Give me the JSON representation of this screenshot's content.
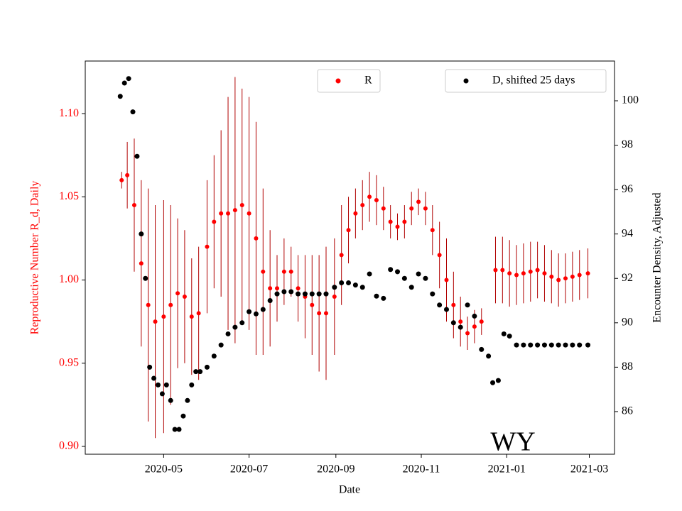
{
  "chart_data": {
    "type": "scatter",
    "xlabel": "Date",
    "ylabel": "Reproductive Number R_d, Daily",
    "y2label": "Encounter Density, Adjusted",
    "annotation": "WY",
    "xlim": [
      "2020-03-06",
      "2021-03-19"
    ],
    "xticks": [
      "2020-05",
      "2020-07",
      "2020-09",
      "2020-11",
      "2021-01",
      "2021-03"
    ],
    "ylim": [
      0.8953,
      1.1316
    ],
    "yticks": [
      {
        "value": 0.9,
        "label": "0.90"
      },
      {
        "value": 0.95,
        "label": "0.95"
      },
      {
        "value": 1.0,
        "label": "1.00"
      },
      {
        "value": 1.05,
        "label": "1.05"
      },
      {
        "value": 1.1,
        "label": "1.10"
      }
    ],
    "y2lim": [
      84.08,
      101.79
    ],
    "y2ticks": [
      86,
      88,
      90,
      92,
      94,
      96,
      98,
      100
    ],
    "series": [
      {
        "name": "R",
        "color": "#ff0000",
        "error_color": "#b00000",
        "axis": "y",
        "legend": "upper center",
        "x": [
          "2020-04-01",
          "2020-04-05",
          "2020-04-10",
          "2020-04-15",
          "2020-04-20",
          "2020-04-25",
          "2020-05-01",
          "2020-05-06",
          "2020-05-11",
          "2020-05-16",
          "2020-05-21",
          "2020-05-26",
          "2020-06-01",
          "2020-06-06",
          "2020-06-11",
          "2020-06-16",
          "2020-06-21",
          "2020-06-26",
          "2020-07-01",
          "2020-07-06",
          "2020-07-11",
          "2020-07-16",
          "2020-07-21",
          "2020-07-26",
          "2020-07-31",
          "2020-08-05",
          "2020-08-10",
          "2020-08-15",
          "2020-08-20",
          "2020-08-25",
          "2020-08-31",
          "2020-09-05",
          "2020-09-10",
          "2020-09-15",
          "2020-09-20",
          "2020-09-25",
          "2020-09-30",
          "2020-10-05",
          "2020-10-10",
          "2020-10-15",
          "2020-10-20",
          "2020-10-25",
          "2020-10-30",
          "2020-11-04",
          "2020-11-09",
          "2020-11-14",
          "2020-11-19",
          "2020-11-24",
          "2020-11-29",
          "2020-12-04",
          "2020-12-09",
          "2020-12-14",
          "2020-12-24",
          "2020-12-29",
          "2021-01-03",
          "2021-01-08",
          "2021-01-13",
          "2021-01-18",
          "2021-01-23",
          "2021-01-28",
          "2021-02-02",
          "2021-02-07",
          "2021-02-12",
          "2021-02-17",
          "2021-02-22",
          "2021-02-28"
        ],
        "values": [
          1.06,
          1.063,
          1.045,
          1.01,
          0.985,
          0.975,
          0.978,
          0.985,
          0.992,
          0.99,
          0.978,
          0.98,
          1.02,
          1.035,
          1.04,
          1.04,
          1.042,
          1.045,
          1.04,
          1.025,
          1.005,
          0.995,
          0.995,
          1.005,
          1.005,
          0.995,
          0.99,
          0.985,
          0.98,
          0.98,
          0.99,
          1.015,
          1.03,
          1.04,
          1.045,
          1.05,
          1.048,
          1.043,
          1.035,
          1.032,
          1.035,
          1.043,
          1.047,
          1.043,
          1.03,
          1.015,
          1.0,
          0.985,
          0.975,
          0.968,
          0.972,
          0.975,
          1.006,
          1.006,
          1.004,
          1.003,
          1.004,
          1.005,
          1.006,
          1.004,
          1.002,
          1.0,
          1.001,
          1.002,
          1.003,
          1.004
        ],
        "errors": [
          0.005,
          0.02,
          0.04,
          0.05,
          0.07,
          0.07,
          0.07,
          0.06,
          0.045,
          0.04,
          0.035,
          0.04,
          0.04,
          0.04,
          0.05,
          0.07,
          0.08,
          0.07,
          0.07,
          0.07,
          0.05,
          0.035,
          0.02,
          0.02,
          0.015,
          0.02,
          0.025,
          0.03,
          0.035,
          0.04,
          0.035,
          0.03,
          0.02,
          0.015,
          0.015,
          0.015,
          0.015,
          0.013,
          0.01,
          0.008,
          0.01,
          0.01,
          0.008,
          0.01,
          0.015,
          0.02,
          0.025,
          0.02,
          0.015,
          0.01,
          0.01,
          0.008,
          0.02,
          0.02,
          0.02,
          0.018,
          0.018,
          0.018,
          0.017,
          0.017,
          0.016,
          0.016,
          0.015,
          0.015,
          0.015,
          0.015
        ]
      },
      {
        "name": "D, shifted 25 days",
        "color": "#000000",
        "axis": "y2",
        "legend": "upper right",
        "x": [
          "2020-03-31",
          "2020-04-03",
          "2020-04-06",
          "2020-04-09",
          "2020-04-12",
          "2020-04-15",
          "2020-04-18",
          "2020-04-21",
          "2020-04-24",
          "2020-04-27",
          "2020-04-30",
          "2020-05-03",
          "2020-05-06",
          "2020-05-09",
          "2020-05-12",
          "2020-05-15",
          "2020-05-18",
          "2020-05-21",
          "2020-05-24",
          "2020-05-27",
          "2020-06-01",
          "2020-06-06",
          "2020-06-11",
          "2020-06-16",
          "2020-06-21",
          "2020-06-26",
          "2020-07-01",
          "2020-07-06",
          "2020-07-11",
          "2020-07-16",
          "2020-07-21",
          "2020-07-26",
          "2020-07-31",
          "2020-08-05",
          "2020-08-10",
          "2020-08-15",
          "2020-08-20",
          "2020-08-25",
          "2020-08-31",
          "2020-09-05",
          "2020-09-10",
          "2020-09-15",
          "2020-09-20",
          "2020-09-25",
          "2020-09-30",
          "2020-10-05",
          "2020-10-10",
          "2020-10-15",
          "2020-10-20",
          "2020-10-25",
          "2020-10-30",
          "2020-11-04",
          "2020-11-09",
          "2020-11-14",
          "2020-11-19",
          "2020-11-24",
          "2020-11-29",
          "2020-12-04",
          "2020-12-09",
          "2020-12-14",
          "2020-12-19",
          "2020-12-22",
          "2020-12-26",
          "2020-12-30",
          "2021-01-03",
          "2021-01-08",
          "2021-01-13",
          "2021-01-18",
          "2021-01-23",
          "2021-01-28",
          "2021-02-02",
          "2021-02-07",
          "2021-02-12",
          "2021-02-17",
          "2021-02-22",
          "2021-02-28"
        ],
        "values": [
          100.2,
          100.8,
          101.0,
          99.5,
          97.5,
          94,
          92,
          88,
          87.5,
          87.2,
          86.8,
          87.2,
          86.5,
          85.2,
          85.2,
          85.8,
          86.5,
          87.2,
          87.8,
          87.8,
          88,
          88.5,
          89,
          89.5,
          89.8,
          90,
          90.5,
          90.4,
          90.6,
          91,
          91.3,
          91.4,
          91.4,
          91.3,
          91.3,
          91.3,
          91.3,
          91.3,
          91.6,
          91.8,
          91.8,
          91.7,
          91.6,
          92.2,
          91.2,
          91.1,
          92.4,
          92.3,
          92.0,
          91.6,
          92.2,
          92.0,
          91.3,
          90.8,
          90.6,
          90.0,
          89.8,
          90.8,
          90.3,
          88.8,
          88.5,
          87.3,
          87.4,
          89.5,
          89.4,
          89,
          89,
          89,
          89,
          89,
          89,
          89,
          89,
          89,
          89,
          89
        ]
      }
    ]
  }
}
